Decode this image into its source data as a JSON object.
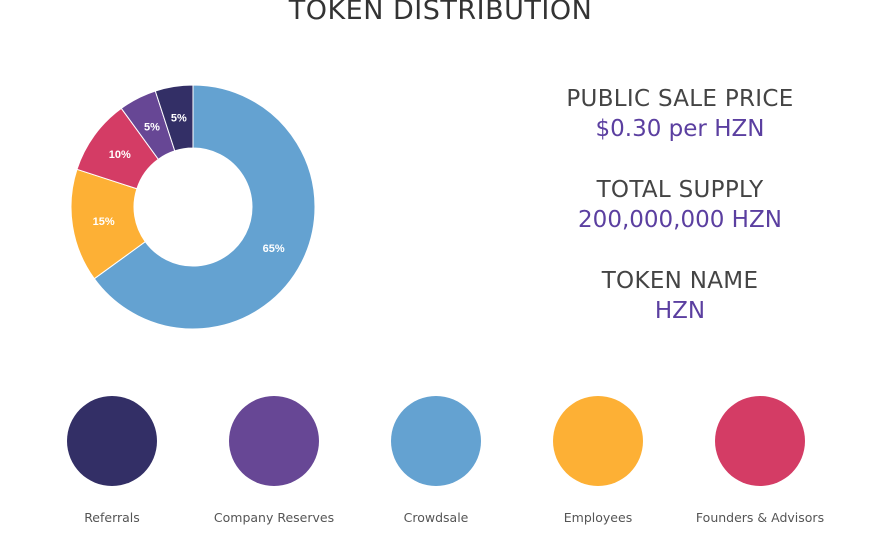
{
  "page": {
    "title": "TOKEN DISTRIBUTION"
  },
  "info": {
    "sale_label": "PUBLIC SALE PRICE",
    "sale_value": "$0.30 per HZN",
    "supply_label": "TOTAL SUPPLY",
    "supply_value": "200,000,000 HZN",
    "name_label": "TOKEN NAME",
    "name_value": "HZN"
  },
  "colors": {
    "value_text": "#5b3fa0"
  },
  "chart_data": {
    "type": "pie",
    "categories": [
      "Referrals",
      "Company Reserves",
      "Crowdsale",
      "Employees",
      "Founders & Advisors"
    ],
    "values": [
      5,
      5,
      65,
      15,
      10
    ],
    "labels": [
      "5%",
      "5%",
      "65%",
      "15%",
      "10%"
    ],
    "colors": [
      "#332f66",
      "#674795",
      "#64a2d1",
      "#fdb035",
      "#d43c65"
    ],
    "title": "TOKEN DISTRIBUTION",
    "donut": true,
    "legend_position": "bottom"
  }
}
